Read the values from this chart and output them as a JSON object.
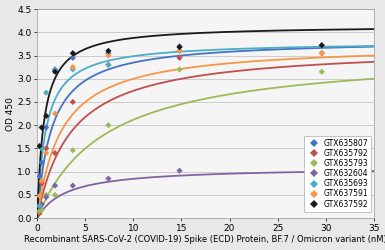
{
  "title": "",
  "xlabel": "Recombinant SARS-CoV-2 (COVID-19) Spike (ECD) Protein, BF.7 / Omicron variant (nM)",
  "ylabel": "OD 450",
  "xlim": [
    0,
    35
  ],
  "ylim": [
    0,
    4.5
  ],
  "xticks": [
    0,
    5,
    10,
    15,
    20,
    25,
    30,
    35
  ],
  "yticks": [
    0,
    0.5,
    1.0,
    1.5,
    2.0,
    2.5,
    3.0,
    3.5,
    4.0,
    4.5
  ],
  "series": [
    {
      "label": "GTX635807",
      "color": "#4472C4",
      "scatter_x": [
        0.23,
        0.46,
        0.93,
        1.85,
        3.7,
        7.4,
        14.8,
        29.6
      ],
      "scatter_y": [
        0.9,
        1.2,
        1.95,
        3.2,
        3.45,
        3.55,
        3.7,
        3.72
      ],
      "Bmax": 3.85,
      "Kd": 1.5
    },
    {
      "label": "GTX635792",
      "color": "#C0504D",
      "scatter_x": [
        0.23,
        0.46,
        0.93,
        1.85,
        3.7,
        7.4,
        14.8,
        29.6
      ],
      "scatter_y": [
        0.1,
        0.75,
        1.5,
        1.4,
        2.5,
        3.3,
        3.45,
        3.55
      ],
      "Bmax": 3.7,
      "Kd": 3.5
    },
    {
      "label": "GTX635793",
      "color": "#9BBB59",
      "scatter_x": [
        0.23,
        0.46,
        0.93,
        1.85,
        3.7,
        7.4,
        14.8,
        29.6
      ],
      "scatter_y": [
        0.15,
        0.18,
        0.5,
        0.5,
        1.46,
        2.0,
        3.2,
        3.15
      ],
      "Bmax": 3.6,
      "Kd": 7.0
    },
    {
      "label": "GTX632604",
      "color": "#8064A2",
      "scatter_x": [
        0.23,
        0.46,
        0.93,
        1.85,
        3.7,
        7.4,
        14.8,
        29.6
      ],
      "scatter_y": [
        0.25,
        0.3,
        0.45,
        0.7,
        0.7,
        0.85,
        1.02,
        1.05
      ],
      "Bmax": 1.1,
      "Kd": 3.0
    },
    {
      "label": "GTX635693",
      "color": "#4BACC6",
      "scatter_x": [
        0.23,
        0.46,
        0.93,
        1.85,
        3.7,
        7.4,
        14.8,
        29.6
      ],
      "scatter_y": [
        0.27,
        1.5,
        2.7,
        3.18,
        3.2,
        3.3,
        3.6,
        3.7
      ],
      "Bmax": 3.8,
      "Kd": 0.9
    },
    {
      "label": "GTX637591",
      "color": "#F79646",
      "scatter_x": [
        0.23,
        0.46,
        0.93,
        1.85,
        3.7,
        7.4,
        14.8,
        29.6
      ],
      "scatter_y": [
        0.48,
        0.8,
        1.4,
        2.25,
        3.25,
        3.5,
        3.6,
        3.55
      ],
      "Bmax": 3.75,
      "Kd": 2.5
    },
    {
      "label": "GTX637592",
      "color": "#1A1A1A",
      "scatter_x": [
        0.23,
        0.46,
        0.93,
        1.85,
        3.7,
        7.4,
        14.8,
        29.6
      ],
      "scatter_y": [
        1.55,
        1.95,
        2.2,
        3.15,
        3.55,
        3.6,
        3.68,
        3.72
      ],
      "Bmax": 4.15,
      "Kd": 0.7
    }
  ],
  "background_color": "#e8e8e8",
  "plot_bg_color": "#f5f5f5",
  "legend_fontsize": 5.5,
  "axis_fontsize": 6.5,
  "tick_fontsize": 6.5,
  "xlabel_fontsize": 6.0
}
